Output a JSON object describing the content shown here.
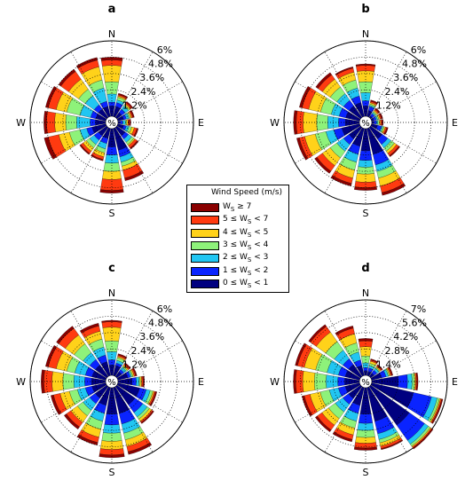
{
  "chart_data": [
    {
      "type": "windrose",
      "panel_label": "a",
      "direction_labels": [
        "N",
        "E",
        "S",
        "W"
      ],
      "rings": [
        "1.2%",
        "2.4%",
        "3.6%",
        "4.8%",
        "6%"
      ],
      "ring_values": [
        1.2,
        2.4,
        3.6,
        4.8,
        6.0
      ],
      "rmax": 6.0,
      "center_label": "%",
      "sectors_deg": [
        0,
        22.5,
        45,
        67.5,
        90,
        112.5,
        135,
        157.5,
        180,
        202.5,
        225,
        247.5,
        270,
        292.5,
        315,
        337.5
      ],
      "cumulative_percent": [
        [
          1.2,
          1.2,
          0.9,
          0.9,
          0.6,
          0.9,
          1.2,
          2.1,
          1.8,
          1.2,
          1.2,
          1.5,
          1.2,
          1.2,
          1.2,
          1.2
        ],
        [
          1.5,
          1.5,
          1.2,
          1.1,
          0.8,
          1.1,
          1.5,
          2.6,
          2.4,
          1.6,
          1.6,
          1.9,
          1.6,
          1.6,
          1.6,
          1.6
        ],
        [
          2.1,
          1.7,
          1.5,
          1.3,
          1.0,
          1.3,
          1.8,
          3.0,
          3.0,
          2.0,
          2.0,
          2.4,
          2.6,
          2.4,
          2.4,
          2.6
        ],
        [
          3.0,
          1.9,
          1.6,
          1.4,
          1.1,
          1.5,
          2.0,
          3.3,
          3.6,
          2.3,
          2.3,
          3.2,
          3.4,
          3.4,
          3.0,
          3.2
        ],
        [
          4.2,
          2.0,
          1.7,
          1.5,
          1.2,
          1.7,
          2.1,
          3.6,
          4.2,
          2.6,
          2.6,
          4.0,
          4.2,
          4.2,
          3.9,
          4.2
        ],
        [
          4.6,
          2.1,
          1.8,
          1.6,
          1.3,
          1.9,
          2.3,
          4.2,
          5.0,
          2.8,
          2.8,
          4.8,
          4.8,
          4.8,
          4.6,
          4.7
        ],
        [
          4.8,
          2.2,
          1.9,
          1.7,
          1.4,
          2.0,
          2.4,
          4.4,
          5.2,
          2.9,
          2.9,
          5.1,
          5.0,
          5.0,
          4.8,
          4.9
        ]
      ]
    },
    {
      "type": "windrose",
      "panel_label": "b",
      "direction_labels": [
        "N",
        "E",
        "S",
        "W"
      ],
      "rings": [
        "1.2%",
        "2.4%",
        "3.6%",
        "4.8%",
        "6%"
      ],
      "ring_values": [
        1.2,
        2.4,
        3.6,
        4.8,
        6.0
      ],
      "rmax": 6.0,
      "center_label": "%",
      "sectors_deg": [
        0,
        22.5,
        45,
        67.5,
        90,
        112.5,
        135,
        157.5,
        180,
        202.5,
        225,
        247.5,
        270,
        292.5,
        315,
        337.5
      ],
      "cumulative_percent": [
        [
          1.2,
          0.9,
          0.6,
          0.6,
          0.6,
          0.9,
          1.5,
          2.4,
          2.1,
          1.8,
          1.5,
          1.8,
          1.5,
          1.5,
          1.5,
          1.5
        ],
        [
          1.6,
          1.2,
          0.8,
          0.8,
          0.8,
          1.2,
          2.0,
          3.2,
          2.8,
          2.4,
          2.0,
          2.4,
          2.0,
          2.0,
          2.0,
          2.0
        ],
        [
          2.2,
          1.3,
          0.9,
          0.9,
          0.9,
          1.3,
          2.3,
          3.7,
          3.3,
          3.0,
          2.6,
          3.0,
          2.8,
          2.6,
          2.6,
          2.6
        ],
        [
          3.0,
          1.4,
          1.0,
          1.0,
          1.0,
          1.4,
          2.6,
          4.2,
          3.8,
          3.6,
          3.2,
          3.8,
          3.6,
          3.4,
          3.2,
          3.2
        ],
        [
          3.8,
          1.5,
          1.1,
          1.1,
          1.1,
          1.5,
          2.8,
          4.8,
          4.4,
          4.2,
          3.9,
          4.6,
          4.6,
          4.3,
          3.9,
          3.8
        ],
        [
          4.2,
          1.6,
          1.2,
          1.2,
          1.2,
          1.6,
          3.0,
          5.3,
          4.8,
          4.6,
          4.4,
          5.0,
          5.1,
          4.8,
          4.3,
          4.1
        ],
        [
          4.3,
          1.7,
          1.3,
          1.3,
          1.3,
          1.7,
          3.1,
          5.5,
          5.0,
          4.8,
          4.6,
          5.2,
          5.3,
          5.0,
          4.5,
          4.2
        ]
      ]
    },
    {
      "type": "windrose",
      "panel_label": "c",
      "direction_labels": [
        "N",
        "E",
        "S",
        "W"
      ],
      "rings": [
        "1.2%",
        "2.4%",
        "3.6%",
        "4.8%",
        "6%"
      ],
      "ring_values": [
        1.2,
        2.4,
        3.6,
        4.8,
        6.0
      ],
      "rmax": 6.0,
      "center_label": "%",
      "sectors_deg": [
        0,
        22.5,
        45,
        67.5,
        90,
        112.5,
        135,
        157.5,
        180,
        202.5,
        225,
        247.5,
        270,
        292.5,
        315,
        337.5
      ],
      "cumulative_percent": [
        [
          1.2,
          1.2,
          0.9,
          1.2,
          1.5,
          2.1,
          2.1,
          2.4,
          2.4,
          1.8,
          1.5,
          1.5,
          1.5,
          1.5,
          1.5,
          1.5
        ],
        [
          1.6,
          1.4,
          1.1,
          1.4,
          1.8,
          2.6,
          2.8,
          3.2,
          3.2,
          2.4,
          2.0,
          2.0,
          2.0,
          2.0,
          2.0,
          2.0
        ],
        [
          2.2,
          1.6,
          1.3,
          1.5,
          2.0,
          2.9,
          3.2,
          3.9,
          3.8,
          3.0,
          2.6,
          2.6,
          2.8,
          2.8,
          2.6,
          2.6
        ],
        [
          3.0,
          1.8,
          1.4,
          1.6,
          2.1,
          3.1,
          3.4,
          4.4,
          4.4,
          3.6,
          3.1,
          3.2,
          3.6,
          3.4,
          3.4,
          3.2
        ],
        [
          4.0,
          1.9,
          1.5,
          1.7,
          2.2,
          3.2,
          3.6,
          4.9,
          5.0,
          4.2,
          3.7,
          3.9,
          4.4,
          4.2,
          4.2,
          3.8
        ],
        [
          4.4,
          2.0,
          1.6,
          1.8,
          2.3,
          3.3,
          3.7,
          5.3,
          5.4,
          4.6,
          4.1,
          4.4,
          5.0,
          4.8,
          4.8,
          4.2
        ],
        [
          4.5,
          2.1,
          1.7,
          1.9,
          2.4,
          3.4,
          3.8,
          5.5,
          5.6,
          4.8,
          4.3,
          4.6,
          5.2,
          5.0,
          5.0,
          4.4
        ]
      ]
    },
    {
      "type": "windrose",
      "panel_label": "d",
      "direction_labels": [
        "N",
        "E",
        "S",
        "W"
      ],
      "rings": [
        "1.4%",
        "2.8%",
        "4.2%",
        "5.6%",
        "7%"
      ],
      "ring_values": [
        1.4,
        2.8,
        4.2,
        5.6,
        7.0
      ],
      "rmax": 7.0,
      "center_label": "%",
      "sectors_deg": [
        0,
        22.5,
        45,
        67.5,
        90,
        112.5,
        135,
        157.5,
        180,
        202.5,
        225,
        247.5,
        270,
        292.5,
        315,
        337.5
      ],
      "cumulative_percent": [
        [
          0.9,
          0.9,
          0.9,
          1.4,
          2.8,
          4.2,
          4.6,
          3.5,
          2.8,
          2.1,
          1.8,
          1.8,
          1.8,
          1.8,
          1.8,
          1.4
        ],
        [
          1.2,
          1.2,
          1.2,
          1.8,
          3.6,
          5.8,
          6.2,
          4.6,
          3.6,
          2.8,
          2.4,
          2.4,
          2.4,
          2.4,
          2.4,
          1.9
        ],
        [
          1.6,
          1.4,
          1.4,
          2.0,
          4.0,
          6.3,
          6.6,
          5.1,
          4.2,
          3.5,
          3.2,
          3.2,
          3.4,
          3.4,
          3.3,
          2.6
        ],
        [
          2.2,
          1.6,
          1.5,
          2.1,
          4.2,
          6.5,
          6.8,
          5.4,
          4.8,
          4.1,
          3.9,
          4.0,
          4.4,
          4.4,
          4.2,
          3.4
        ],
        [
          3.0,
          1.8,
          1.6,
          2.2,
          4.3,
          6.6,
          6.9,
          5.7,
          5.3,
          4.7,
          4.6,
          4.9,
          5.4,
          5.4,
          5.2,
          4.2
        ],
        [
          3.5,
          1.9,
          1.7,
          2.3,
          4.4,
          6.7,
          7.0,
          5.9,
          5.7,
          5.1,
          5.1,
          5.4,
          6.0,
          6.0,
          5.8,
          4.7
        ],
        [
          3.7,
          2.0,
          1.8,
          2.4,
          4.5,
          6.8,
          7.1,
          6.0,
          5.9,
          5.3,
          5.3,
          5.6,
          6.2,
          6.2,
          6.0,
          4.9
        ]
      ]
    }
  ],
  "speed_classes": [
    {
      "color": "#000080"
    },
    {
      "color": "#0a24ff"
    },
    {
      "color": "#21c6f2"
    },
    {
      "color": "#8ef27a"
    },
    {
      "color": "#ffd21a"
    },
    {
      "color": "#ff3a10"
    },
    {
      "color": "#8a0000"
    }
  ],
  "legend": {
    "title": "Wind Speed (m/s)",
    "items": [
      {
        "text": "W",
        "sub": "S",
        "rest": " ≥ 7",
        "color": "#8a0000"
      },
      {
        "text": "5 ≤ W",
        "sub": "S",
        "rest": " < 7",
        "color": "#ff3a10"
      },
      {
        "text": "4 ≤ W",
        "sub": "S",
        "rest": " < 5",
        "color": "#ffd21a"
      },
      {
        "text": "3 ≤ W",
        "sub": "S",
        "rest": " < 4",
        "color": "#8ef27a"
      },
      {
        "text": "2 ≤ W",
        "sub": "S",
        "rest": " < 3",
        "color": "#21c6f2"
      },
      {
        "text": "1 ≤ W",
        "sub": "S",
        "rest": " < 2",
        "color": "#0a24ff"
      },
      {
        "text": "0 ≤ W",
        "sub": "S",
        "rest": " < 1",
        "color": "#000080"
      }
    ]
  }
}
